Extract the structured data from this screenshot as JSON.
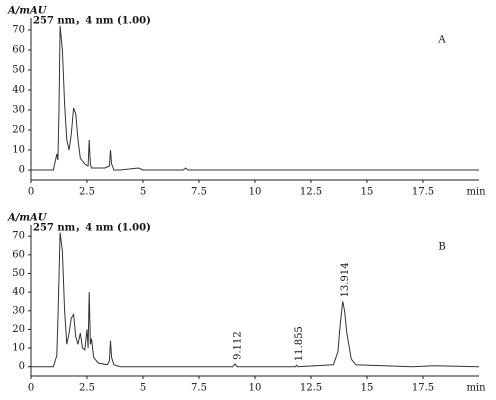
{
  "chart_data": [
    {
      "type": "line",
      "y_label": "A/mAU",
      "subtitle": "257 nm，4 nm (1.00)",
      "panel_label": "A",
      "x_label": "min",
      "x": [
        0,
        1.0,
        1.15,
        1.2,
        1.25,
        1.3,
        1.4,
        1.5,
        1.6,
        1.7,
        1.8,
        1.9,
        2.0,
        2.1,
        2.2,
        2.4,
        2.55,
        2.6,
        2.65,
        2.7,
        2.9,
        3.3,
        3.5,
        3.55,
        3.6,
        3.7,
        4.0,
        4.8,
        5.0,
        6.8,
        6.9,
        7.0,
        10,
        15,
        20
      ],
      "values": [
        0,
        0,
        8,
        5,
        30,
        72,
        60,
        33,
        15,
        10,
        18,
        31,
        28,
        15,
        6,
        3,
        2,
        15,
        3,
        1,
        1,
        1,
        2,
        10,
        3,
        0,
        0,
        1,
        0,
        0,
        1,
        0,
        0,
        0,
        0
      ],
      "color": "#333333",
      "xlim": [
        0,
        20
      ],
      "xticks": [
        0,
        2.5,
        5,
        7.5,
        10,
        12.5,
        15,
        17.5
      ],
      "ylim": [
        -5,
        76
      ],
      "yticks": [
        0,
        10,
        20,
        30,
        40,
        50,
        60,
        70
      ]
    },
    {
      "type": "line",
      "y_label": "A/mAU",
      "subtitle": "257 nm，4 nm (1.00)",
      "panel_label": "B",
      "x_label": "min",
      "x": [
        0,
        1.0,
        1.15,
        1.2,
        1.3,
        1.4,
        1.5,
        1.6,
        1.7,
        1.8,
        1.9,
        2.0,
        2.1,
        2.2,
        2.3,
        2.4,
        2.5,
        2.55,
        2.6,
        2.65,
        2.7,
        2.8,
        3.0,
        3.4,
        3.5,
        3.55,
        3.6,
        3.7,
        4.0,
        5.0,
        9.0,
        9.112,
        9.2,
        11.8,
        11.855,
        11.9,
        13.5,
        13.7,
        13.8,
        13.914,
        14.0,
        14.1,
        14.3,
        14.5,
        17,
        18,
        20
      ],
      "values": [
        0,
        0,
        6,
        25,
        72,
        62,
        30,
        12,
        18,
        26,
        28,
        16,
        12,
        18,
        10,
        9,
        20,
        10,
        40,
        12,
        15,
        5,
        2,
        1,
        3,
        14,
        5,
        1,
        0,
        0,
        0,
        1.5,
        0,
        0,
        0.8,
        0,
        1,
        8,
        22,
        35,
        30,
        18,
        4,
        1,
        0,
        0.5,
        0
      ],
      "color": "#333333",
      "xlim": [
        0,
        20
      ],
      "xticks": [
        0,
        2.5,
        5,
        7.5,
        10,
        12.5,
        15,
        17.5
      ],
      "ylim": [
        -5,
        76
      ],
      "yticks": [
        0,
        10,
        20,
        30,
        40,
        50,
        60,
        70
      ],
      "annotations": [
        {
          "text": "9.112",
          "x": 9.112,
          "y": 1.5
        },
        {
          "text": "11.855",
          "x": 11.855,
          "y": 0.8
        },
        {
          "text": "13.914",
          "x": 13.914,
          "y": 35
        }
      ]
    }
  ]
}
